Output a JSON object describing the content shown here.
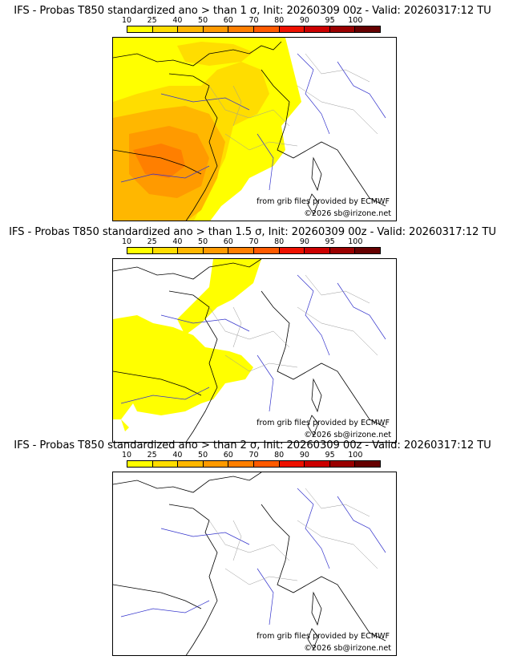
{
  "colorbar": {
    "labels": [
      "10",
      "25",
      "40",
      "50",
      "60",
      "70",
      "80",
      "90",
      "95",
      "100"
    ],
    "colors": [
      "#ffff00",
      "#ffdd00",
      "#ffb700",
      "#ff9a00",
      "#ff7f00",
      "#ff5a00",
      "#ee1100",
      "#cc0000",
      "#9a0000",
      "#660000"
    ]
  },
  "panels": [
    {
      "title": "IFS - Probas T850  standardized ano > than 1 σ, Init: 20260309 00z - Valid: 20260317:12 TU",
      "credit_source": "from grib files provided by ECMWF",
      "credit_copyright": "©2026 sb@irizone.net"
    },
    {
      "title": "IFS - Probas T850  standardized ano > than 1.5 σ, Init: 20260309 00z - Valid: 20260317:12 TU",
      "credit_source": "from grib files provided by ECMWF",
      "credit_copyright": "©2026 sb@irizone.net"
    },
    {
      "title": "IFS - Probas T850  standardized ano > than 2 σ, Init: 20260309 00z - Valid: 20260317:12 TU",
      "credit_source": "from grib files provided by ECMWF",
      "credit_copyright": "©2026 sb@irizone.net"
    }
  ]
}
